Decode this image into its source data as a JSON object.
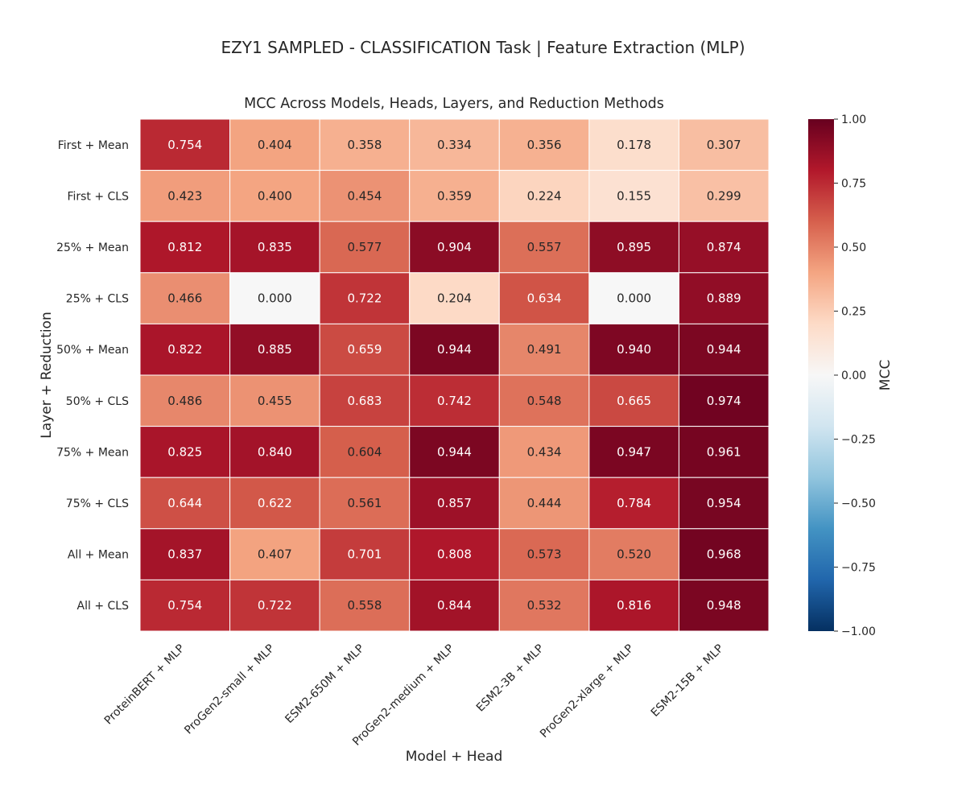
{
  "suptitle": "EZY1 SAMPLED - CLASSIFICATION Task | Feature Extraction (MLP)",
  "chart_data": {
    "type": "heatmap",
    "title": "MCC Across Models, Heads, Layers, and Reduction Methods",
    "xlabel": "Model + Head",
    "ylabel": "Layer + Reduction",
    "colorbar_label": "MCC",
    "colormap": "RdBu_r",
    "vmin": -1.0,
    "vmax": 1.0,
    "colorbar_ticks": [
      1.0,
      0.75,
      0.5,
      0.25,
      0.0,
      -0.25,
      -0.5,
      -0.75,
      -1.0
    ],
    "colorbar_tick_labels": [
      "1.00",
      "0.75",
      "0.50",
      "0.25",
      "0.00",
      "−0.25",
      "−0.50",
      "−0.75",
      "−1.00"
    ],
    "x_categories": [
      "ProteinBERT + MLP",
      "ProGen2-small + MLP",
      "ESM2-650M + MLP",
      "ProGen2-medium + MLP",
      "ESM2-3B + MLP",
      "ProGen2-xlarge + MLP",
      "ESM2-15B + MLP"
    ],
    "y_categories": [
      "First + Mean",
      "First + CLS",
      "25% + Mean",
      "25% + CLS",
      "50% + Mean",
      "50% + CLS",
      "75% + Mean",
      "75% + CLS",
      "All + Mean",
      "All + CLS"
    ],
    "values": [
      [
        0.754,
        0.404,
        0.358,
        0.334,
        0.356,
        0.178,
        0.307
      ],
      [
        0.423,
        0.4,
        0.454,
        0.359,
        0.224,
        0.155,
        0.299
      ],
      [
        0.812,
        0.835,
        0.577,
        0.904,
        0.557,
        0.895,
        0.874
      ],
      [
        0.466,
        0.0,
        0.722,
        0.204,
        0.634,
        0.0,
        0.889
      ],
      [
        0.822,
        0.885,
        0.659,
        0.944,
        0.491,
        0.94,
        0.944
      ],
      [
        0.486,
        0.455,
        0.683,
        0.742,
        0.548,
        0.665,
        0.974
      ],
      [
        0.825,
        0.84,
        0.604,
        0.944,
        0.434,
        0.947,
        0.961
      ],
      [
        0.644,
        0.622,
        0.561,
        0.857,
        0.444,
        0.784,
        0.954
      ],
      [
        0.837,
        0.407,
        0.701,
        0.808,
        0.573,
        0.52,
        0.968
      ],
      [
        0.754,
        0.722,
        0.558,
        0.844,
        0.532,
        0.816,
        0.948
      ]
    ],
    "value_format": "3 decimals"
  }
}
